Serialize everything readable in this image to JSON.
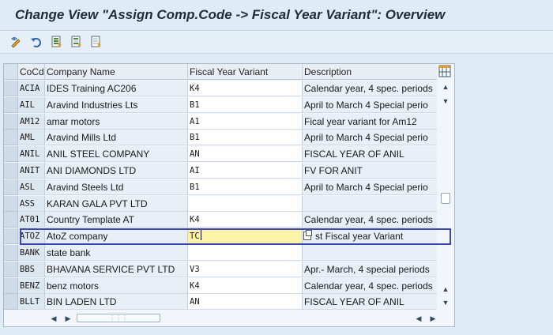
{
  "window": {
    "title": "Change View \"Assign Comp.Code -> Fiscal Year Variant\": Overview"
  },
  "toolbar": {
    "icons": [
      "display-change-icon",
      "undo-icon",
      "select-all-icon",
      "select-block-icon",
      "deselect-all-icon"
    ]
  },
  "table": {
    "headers": {
      "code": "CoCd",
      "name": "Company Name",
      "fyv": "Fiscal Year Variant",
      "desc": "Description"
    },
    "rows": [
      {
        "code": "ACIA",
        "name": "IDES Training AC206",
        "fyv": "K4",
        "desc": "Calendar year, 4 spec. periods"
      },
      {
        "code": "AIL",
        "name": "Aravind Industries Lts",
        "fyv": "B1",
        "desc": "April to March 4 Special perio"
      },
      {
        "code": "AM12",
        "name": "amar motors",
        "fyv": "A1",
        "desc": "Fical year variant for Am12"
      },
      {
        "code": "AML",
        "name": "Aravind Mills Ltd",
        "fyv": "B1",
        "desc": "April to March 4 Special perio"
      },
      {
        "code": "ANIL",
        "name": "ANIL STEEL COMPANY",
        "fyv": "AN",
        "desc": "FISCAL YEAR OF ANIL"
      },
      {
        "code": "ANIT",
        "name": "ANI DIAMONDS LTD",
        "fyv": "AI",
        "desc": "FV FOR ANIT"
      },
      {
        "code": "ASL",
        "name": "Aravind Steels Ltd",
        "fyv": "B1",
        "desc": "April to March 4 Special perio"
      },
      {
        "code": "ASS",
        "name": "KARAN GALA PVT LTD",
        "fyv": "",
        "desc": ""
      },
      {
        "code": "AT01",
        "name": "Country Template AT",
        "fyv": "K4",
        "desc": "Calendar year, 4 spec. periods"
      },
      {
        "code": "ATOZ",
        "name": "AtoZ company",
        "fyv": "TC",
        "desc": "st Fiscal year Variant"
      },
      {
        "code": "BANK",
        "name": "state bank",
        "fyv": "",
        "desc": ""
      },
      {
        "code": "BBS",
        "name": "BHAVANA SERVICE PVT LTD",
        "fyv": "V3",
        "desc": "Apr.- March, 4 special periods"
      },
      {
        "code": "BENZ",
        "name": "benz motors",
        "fyv": "K4",
        "desc": "Calendar year, 4 spec. periods"
      },
      {
        "code": "BLLT",
        "name": "BIN LADEN LTD",
        "fyv": "AN",
        "desc": "FISCAL YEAR OF ANIL"
      }
    ],
    "selected_row_index": 9
  }
}
